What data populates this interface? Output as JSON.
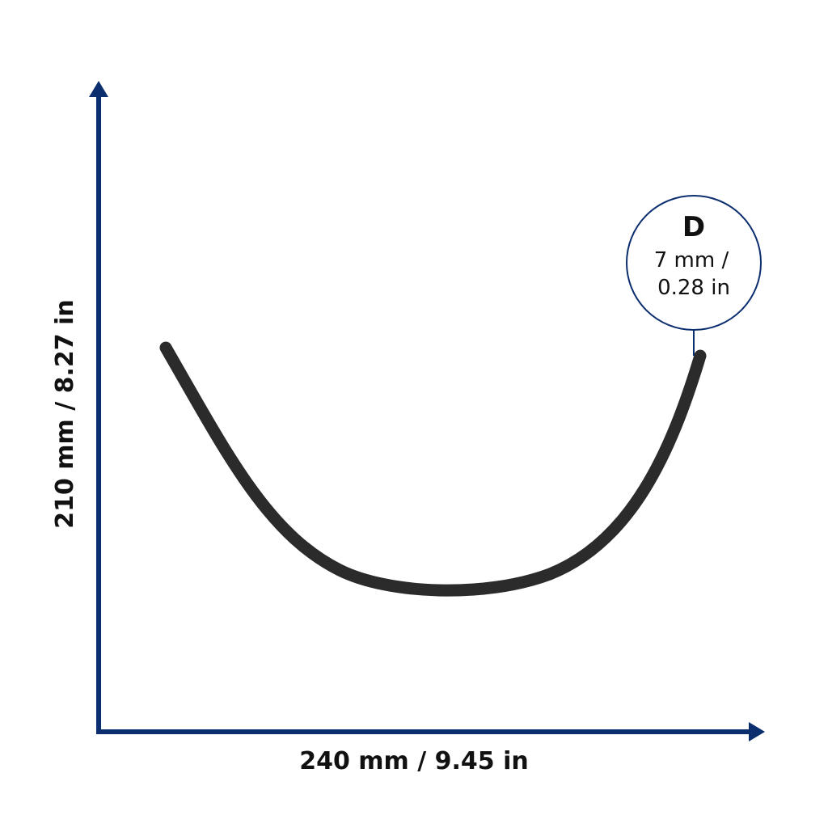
{
  "dimensions": {
    "width": "240 mm / 9.45 in",
    "height": "210 mm / 8.27 in"
  },
  "callout": {
    "label": "D",
    "line1": "7 mm /",
    "line2": "0.28 in"
  }
}
